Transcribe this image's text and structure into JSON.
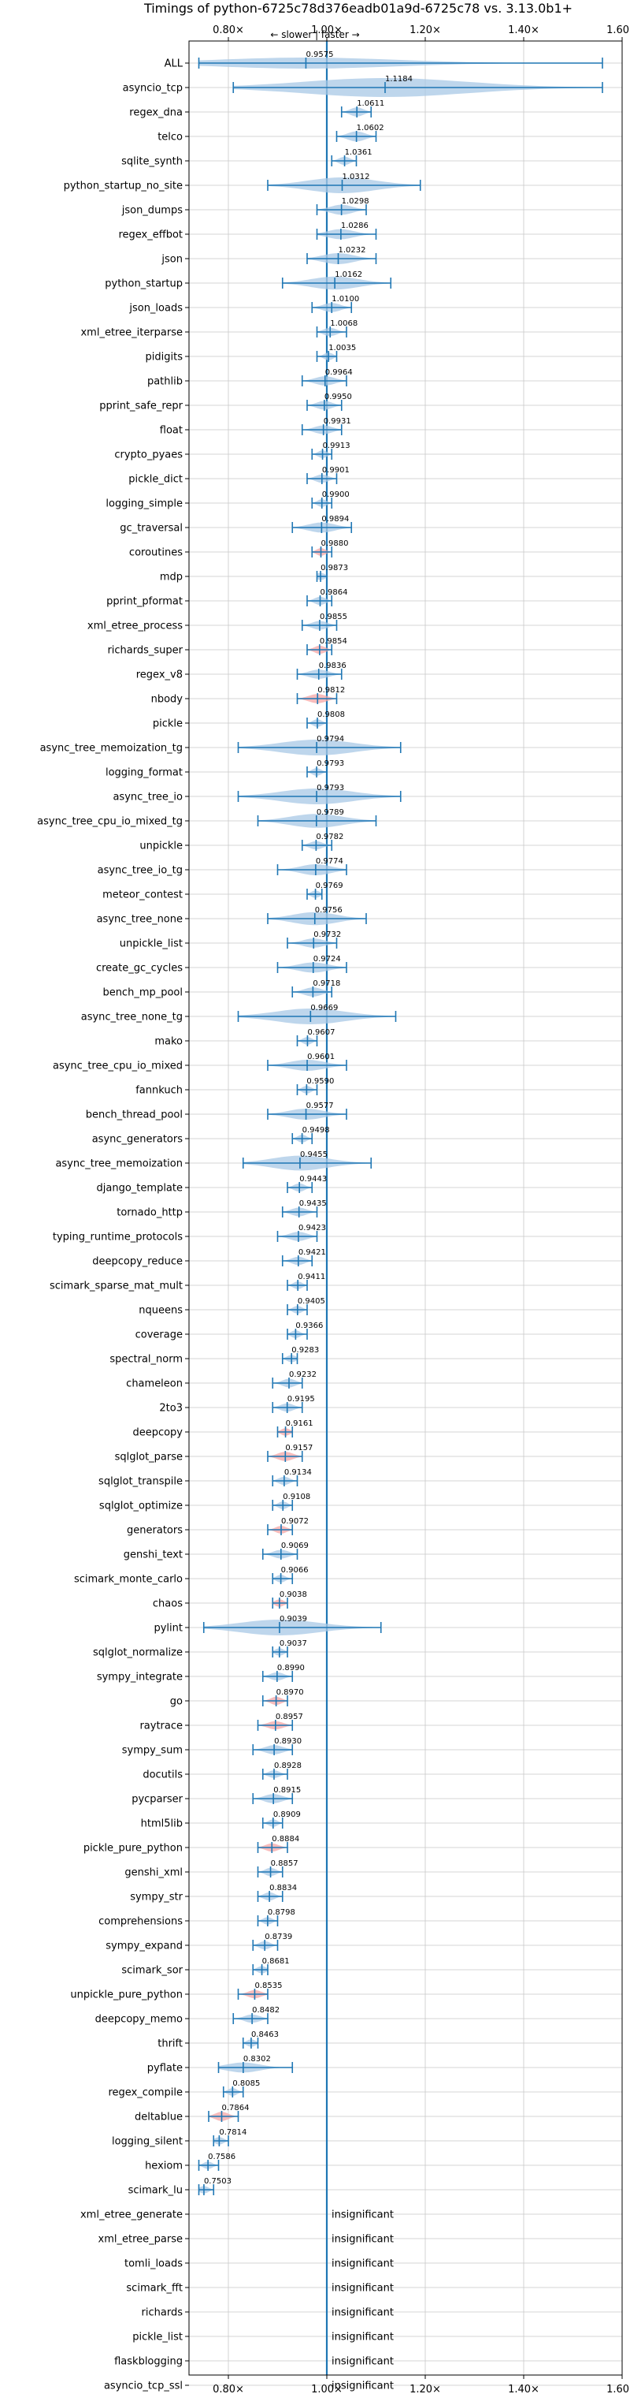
{
  "chart_data": {
    "type": "violin",
    "title": "Timings of python-6725c78d376eadb01a9d-6725c78 vs. 3.13.0b1+",
    "direction_label": "← slower | faster →",
    "xlim": [
      0.72,
      1.6
    ],
    "x_ticks": [
      0.8,
      1.0,
      1.2,
      1.4,
      1.6
    ],
    "x_tick_labels": [
      "0.80×",
      "1.00×",
      "1.20×",
      "1.40×",
      "1.60×"
    ],
    "reference_line": 1.0,
    "grid": true,
    "colors": {
      "violin": "#a8c8e6",
      "highlight": "#f4a6a6",
      "line": "#1f77b4"
    },
    "benchmarks": [
      {
        "name": "ALL",
        "value": 0.9575,
        "label": "0.9575",
        "lo": 0.74,
        "hi": 1.56,
        "spread": 0.05,
        "highlight": false
      },
      {
        "name": "asyncio_tcp",
        "value": 1.1184,
        "label": "1.1184",
        "lo": 0.81,
        "hi": 1.56,
        "spread": 0.3,
        "highlight": false
      },
      {
        "name": "regex_dna",
        "value": 1.0611,
        "label": "1.0611",
        "lo": 1.03,
        "hi": 1.09,
        "spread": 0.03,
        "highlight": false
      },
      {
        "name": "telco",
        "value": 1.0602,
        "label": "1.0602",
        "lo": 1.02,
        "hi": 1.1,
        "spread": 0.04,
        "highlight": false
      },
      {
        "name": "sqlite_synth",
        "value": 1.0361,
        "label": "1.0361",
        "lo": 1.01,
        "hi": 1.06,
        "spread": 0.02,
        "highlight": false
      },
      {
        "name": "python_startup_no_site",
        "value": 1.0312,
        "label": "1.0312",
        "lo": 0.88,
        "hi": 1.19,
        "spread": 0.1,
        "highlight": false
      },
      {
        "name": "json_dumps",
        "value": 1.0298,
        "label": "1.0298",
        "lo": 0.98,
        "hi": 1.08,
        "spread": 0.04,
        "highlight": false
      },
      {
        "name": "regex_effbot",
        "value": 1.0286,
        "label": "1.0286",
        "lo": 0.98,
        "hi": 1.1,
        "spread": 0.04,
        "highlight": false
      },
      {
        "name": "json",
        "value": 1.0232,
        "label": "1.0232",
        "lo": 0.96,
        "hi": 1.1,
        "spread": 0.05,
        "highlight": false
      },
      {
        "name": "python_startup",
        "value": 1.0162,
        "label": "1.0162",
        "lo": 0.91,
        "hi": 1.13,
        "spread": 0.07,
        "highlight": false
      },
      {
        "name": "json_loads",
        "value": 1.01,
        "label": "1.0100",
        "lo": 0.97,
        "hi": 1.05,
        "spread": 0.03,
        "highlight": false
      },
      {
        "name": "xml_etree_iterparse",
        "value": 1.0068,
        "label": "1.0068",
        "lo": 0.98,
        "hi": 1.04,
        "spread": 0.02,
        "highlight": false
      },
      {
        "name": "pidigits",
        "value": 1.0035,
        "label": "1.0035",
        "lo": 0.98,
        "hi": 1.02,
        "spread": 0.015,
        "highlight": false
      },
      {
        "name": "pathlib",
        "value": 0.9964,
        "label": "0.9964",
        "lo": 0.95,
        "hi": 1.04,
        "spread": 0.03,
        "highlight": false
      },
      {
        "name": "pprint_safe_repr",
        "value": 0.995,
        "label": "0.9950",
        "lo": 0.96,
        "hi": 1.03,
        "spread": 0.025,
        "highlight": false
      },
      {
        "name": "float",
        "value": 0.9931,
        "label": "0.9931",
        "lo": 0.95,
        "hi": 1.03,
        "spread": 0.025,
        "highlight": false
      },
      {
        "name": "crypto_pyaes",
        "value": 0.9913,
        "label": "0.9913",
        "lo": 0.97,
        "hi": 1.01,
        "spread": 0.015,
        "highlight": false
      },
      {
        "name": "pickle_dict",
        "value": 0.9901,
        "label": "0.9901",
        "lo": 0.96,
        "hi": 1.02,
        "spread": 0.02,
        "highlight": false
      },
      {
        "name": "logging_simple",
        "value": 0.99,
        "label": "0.9900",
        "lo": 0.97,
        "hi": 1.01,
        "spread": 0.015,
        "highlight": false
      },
      {
        "name": "gc_traversal",
        "value": 0.9894,
        "label": "0.9894",
        "lo": 0.93,
        "hi": 1.05,
        "spread": 0.04,
        "highlight": false
      },
      {
        "name": "coroutines",
        "value": 0.988,
        "label": "0.9880",
        "lo": 0.97,
        "hi": 1.01,
        "spread": 0.015,
        "highlight": true
      },
      {
        "name": "mdp",
        "value": 0.9873,
        "label": "0.9873",
        "lo": 0.98,
        "hi": 1.0,
        "spread": 0.01,
        "highlight": false
      },
      {
        "name": "pprint_pformat",
        "value": 0.9864,
        "label": "0.9864",
        "lo": 0.96,
        "hi": 1.01,
        "spread": 0.02,
        "highlight": false
      },
      {
        "name": "xml_etree_process",
        "value": 0.9855,
        "label": "0.9855",
        "lo": 0.95,
        "hi": 1.02,
        "spread": 0.025,
        "highlight": false
      },
      {
        "name": "richards_super",
        "value": 0.9854,
        "label": "0.9854",
        "lo": 0.96,
        "hi": 1.01,
        "spread": 0.02,
        "highlight": true
      },
      {
        "name": "regex_v8",
        "value": 0.9836,
        "label": "0.9836",
        "lo": 0.94,
        "hi": 1.03,
        "spread": 0.03,
        "highlight": false
      },
      {
        "name": "nbody",
        "value": 0.9812,
        "label": "0.9812",
        "lo": 0.94,
        "hi": 1.02,
        "spread": 0.03,
        "highlight": true
      },
      {
        "name": "pickle",
        "value": 0.9808,
        "label": "0.9808",
        "lo": 0.96,
        "hi": 1.0,
        "spread": 0.015,
        "highlight": false
      },
      {
        "name": "async_tree_memoization_tg",
        "value": 0.9794,
        "label": "0.9794",
        "lo": 0.82,
        "hi": 1.15,
        "spread": 0.1,
        "highlight": false
      },
      {
        "name": "logging_format",
        "value": 0.9793,
        "label": "0.9793",
        "lo": 0.96,
        "hi": 1.0,
        "spread": 0.015,
        "highlight": false
      },
      {
        "name": "async_tree_io",
        "value": 0.9793,
        "label": "0.9793",
        "lo": 0.82,
        "hi": 1.15,
        "spread": 0.1,
        "highlight": false
      },
      {
        "name": "async_tree_cpu_io_mixed_tg",
        "value": 0.9789,
        "label": "0.9789",
        "lo": 0.86,
        "hi": 1.1,
        "spread": 0.08,
        "highlight": false
      },
      {
        "name": "unpickle",
        "value": 0.9782,
        "label": "0.9782",
        "lo": 0.95,
        "hi": 1.01,
        "spread": 0.02,
        "highlight": false
      },
      {
        "name": "async_tree_io_tg",
        "value": 0.9774,
        "label": "0.9774",
        "lo": 0.9,
        "hi": 1.04,
        "spread": 0.05,
        "highlight": false
      },
      {
        "name": "meteor_contest",
        "value": 0.9769,
        "label": "0.9769",
        "lo": 0.96,
        "hi": 0.99,
        "spread": 0.01,
        "highlight": false
      },
      {
        "name": "async_tree_none",
        "value": 0.9756,
        "label": "0.9756",
        "lo": 0.88,
        "hi": 1.08,
        "spread": 0.07,
        "highlight": false
      },
      {
        "name": "unpickle_list",
        "value": 0.9732,
        "label": "0.9732",
        "lo": 0.92,
        "hi": 1.02,
        "spread": 0.03,
        "highlight": false
      },
      {
        "name": "create_gc_cycles",
        "value": 0.9724,
        "label": "0.9724",
        "lo": 0.9,
        "hi": 1.04,
        "spread": 0.04,
        "highlight": false
      },
      {
        "name": "bench_mp_pool",
        "value": 0.9718,
        "label": "0.9718",
        "lo": 0.93,
        "hi": 1.01,
        "spread": 0.03,
        "highlight": false
      },
      {
        "name": "async_tree_none_tg",
        "value": 0.9669,
        "label": "0.9669",
        "lo": 0.82,
        "hi": 1.14,
        "spread": 0.1,
        "highlight": false
      },
      {
        "name": "mako",
        "value": 0.9607,
        "label": "0.9607",
        "lo": 0.94,
        "hi": 0.98,
        "spread": 0.015,
        "highlight": false
      },
      {
        "name": "async_tree_cpu_io_mixed",
        "value": 0.9601,
        "label": "0.9601",
        "lo": 0.88,
        "hi": 1.04,
        "spread": 0.05,
        "highlight": false
      },
      {
        "name": "fannkuch",
        "value": 0.959,
        "label": "0.9590",
        "lo": 0.94,
        "hi": 0.98,
        "spread": 0.015,
        "highlight": false
      },
      {
        "name": "bench_thread_pool",
        "value": 0.9577,
        "label": "0.9577",
        "lo": 0.88,
        "hi": 1.04,
        "spread": 0.05,
        "highlight": false
      },
      {
        "name": "async_generators",
        "value": 0.9498,
        "label": "0.9498",
        "lo": 0.93,
        "hi": 0.97,
        "spread": 0.015,
        "highlight": false
      },
      {
        "name": "async_tree_memoization",
        "value": 0.9455,
        "label": "0.9455",
        "lo": 0.83,
        "hi": 1.09,
        "spread": 0.09,
        "highlight": false
      },
      {
        "name": "django_template",
        "value": 0.9443,
        "label": "0.9443",
        "lo": 0.92,
        "hi": 0.97,
        "spread": 0.02,
        "highlight": false
      },
      {
        "name": "tornado_http",
        "value": 0.9435,
        "label": "0.9435",
        "lo": 0.91,
        "hi": 0.98,
        "spread": 0.025,
        "highlight": false
      },
      {
        "name": "typing_runtime_protocols",
        "value": 0.9423,
        "label": "0.9423",
        "lo": 0.9,
        "hi": 0.98,
        "spread": 0.03,
        "highlight": false
      },
      {
        "name": "deepcopy_reduce",
        "value": 0.9421,
        "label": "0.9421",
        "lo": 0.91,
        "hi": 0.97,
        "spread": 0.02,
        "highlight": false
      },
      {
        "name": "scimark_sparse_mat_mult",
        "value": 0.9411,
        "label": "0.9411",
        "lo": 0.92,
        "hi": 0.96,
        "spread": 0.015,
        "highlight": false
      },
      {
        "name": "nqueens",
        "value": 0.9405,
        "label": "0.9405",
        "lo": 0.92,
        "hi": 0.96,
        "spread": 0.015,
        "highlight": false
      },
      {
        "name": "coverage",
        "value": 0.9366,
        "label": "0.9366",
        "lo": 0.92,
        "hi": 0.96,
        "spread": 0.015,
        "highlight": false
      },
      {
        "name": "spectral_norm",
        "value": 0.9283,
        "label": "0.9283",
        "lo": 0.91,
        "hi": 0.94,
        "spread": 0.01,
        "highlight": false
      },
      {
        "name": "chameleon",
        "value": 0.9232,
        "label": "0.9232",
        "lo": 0.89,
        "hi": 0.95,
        "spread": 0.025,
        "highlight": false
      },
      {
        "name": "2to3",
        "value": 0.9195,
        "label": "0.9195",
        "lo": 0.89,
        "hi": 0.95,
        "spread": 0.02,
        "highlight": false
      },
      {
        "name": "deepcopy",
        "value": 0.9161,
        "label": "0.9161",
        "lo": 0.9,
        "hi": 0.93,
        "spread": 0.012,
        "highlight": true
      },
      {
        "name": "sqlglot_parse",
        "value": 0.9157,
        "label": "0.9157",
        "lo": 0.88,
        "hi": 0.95,
        "spread": 0.03,
        "highlight": true
      },
      {
        "name": "sqlglot_transpile",
        "value": 0.9134,
        "label": "0.9134",
        "lo": 0.89,
        "hi": 0.94,
        "spread": 0.02,
        "highlight": false
      },
      {
        "name": "sqlglot_optimize",
        "value": 0.9108,
        "label": "0.9108",
        "lo": 0.89,
        "hi": 0.93,
        "spread": 0.015,
        "highlight": false
      },
      {
        "name": "generators",
        "value": 0.9072,
        "label": "0.9072",
        "lo": 0.88,
        "hi": 0.93,
        "spread": 0.015,
        "highlight": true
      },
      {
        "name": "genshi_text",
        "value": 0.9069,
        "label": "0.9069",
        "lo": 0.87,
        "hi": 0.94,
        "spread": 0.025,
        "highlight": false
      },
      {
        "name": "scimark_monte_carlo",
        "value": 0.9066,
        "label": "0.9066",
        "lo": 0.89,
        "hi": 0.93,
        "spread": 0.015,
        "highlight": false
      },
      {
        "name": "chaos",
        "value": 0.9038,
        "label": "0.9038",
        "lo": 0.89,
        "hi": 0.92,
        "spread": 0.012,
        "highlight": true
      },
      {
        "name": "pylint",
        "value": 0.9039,
        "label": "0.9039",
        "lo": 0.75,
        "hi": 1.11,
        "spread": 0.1,
        "highlight": false
      },
      {
        "name": "sqlglot_normalize",
        "value": 0.9037,
        "label": "0.9037",
        "lo": 0.89,
        "hi": 0.92,
        "spread": 0.012,
        "highlight": false
      },
      {
        "name": "sympy_integrate",
        "value": 0.899,
        "label": "0.8990",
        "lo": 0.87,
        "hi": 0.93,
        "spread": 0.02,
        "highlight": false
      },
      {
        "name": "go",
        "value": 0.897,
        "label": "0.8970",
        "lo": 0.87,
        "hi": 0.92,
        "spread": 0.02,
        "highlight": true
      },
      {
        "name": "raytrace",
        "value": 0.8957,
        "label": "0.8957",
        "lo": 0.86,
        "hi": 0.93,
        "spread": 0.02,
        "highlight": true
      },
      {
        "name": "sympy_sum",
        "value": 0.893,
        "label": "0.8930",
        "lo": 0.85,
        "hi": 0.93,
        "spread": 0.03,
        "highlight": false
      },
      {
        "name": "docutils",
        "value": 0.8928,
        "label": "0.8928",
        "lo": 0.87,
        "hi": 0.92,
        "spread": 0.015,
        "highlight": false
      },
      {
        "name": "pycparser",
        "value": 0.8915,
        "label": "0.8915",
        "lo": 0.85,
        "hi": 0.93,
        "spread": 0.03,
        "highlight": false
      },
      {
        "name": "html5lib",
        "value": 0.8909,
        "label": "0.8909",
        "lo": 0.87,
        "hi": 0.91,
        "spread": 0.012,
        "highlight": false
      },
      {
        "name": "pickle_pure_python",
        "value": 0.8884,
        "label": "0.8884",
        "lo": 0.86,
        "hi": 0.92,
        "spread": 0.02,
        "highlight": true
      },
      {
        "name": "genshi_xml",
        "value": 0.8857,
        "label": "0.8857",
        "lo": 0.86,
        "hi": 0.91,
        "spread": 0.02,
        "highlight": false
      },
      {
        "name": "sympy_str",
        "value": 0.8834,
        "label": "0.8834",
        "lo": 0.86,
        "hi": 0.91,
        "spread": 0.02,
        "highlight": false
      },
      {
        "name": "comprehensions",
        "value": 0.8798,
        "label": "0.8798",
        "lo": 0.86,
        "hi": 0.9,
        "spread": 0.012,
        "highlight": false
      },
      {
        "name": "sympy_expand",
        "value": 0.8739,
        "label": "0.8739",
        "lo": 0.85,
        "hi": 0.9,
        "spread": 0.02,
        "highlight": false
      },
      {
        "name": "scimark_sor",
        "value": 0.8681,
        "label": "0.8681",
        "lo": 0.85,
        "hi": 0.88,
        "spread": 0.01,
        "highlight": false
      },
      {
        "name": "unpickle_pure_python",
        "value": 0.8535,
        "label": "0.8535",
        "lo": 0.82,
        "hi": 0.88,
        "spread": 0.02,
        "highlight": true
      },
      {
        "name": "deepcopy_memo",
        "value": 0.8482,
        "label": "0.8482",
        "lo": 0.81,
        "hi": 0.88,
        "spread": 0.02,
        "highlight": false
      },
      {
        "name": "thrift",
        "value": 0.8463,
        "label": "0.8463",
        "lo": 0.83,
        "hi": 0.86,
        "spread": 0.012,
        "highlight": false
      },
      {
        "name": "pyflate",
        "value": 0.8302,
        "label": "0.8302",
        "lo": 0.78,
        "hi": 0.93,
        "spread": 0.04,
        "highlight": false
      },
      {
        "name": "regex_compile",
        "value": 0.8085,
        "label": "0.8085",
        "lo": 0.79,
        "hi": 0.83,
        "spread": 0.015,
        "highlight": false
      },
      {
        "name": "deltablue",
        "value": 0.7864,
        "label": "0.7864",
        "lo": 0.76,
        "hi": 0.82,
        "spread": 0.03,
        "highlight": true
      },
      {
        "name": "logging_silent",
        "value": 0.7814,
        "label": "0.7814",
        "lo": 0.77,
        "hi": 0.8,
        "spread": 0.012,
        "highlight": false
      },
      {
        "name": "hexiom",
        "value": 0.7586,
        "label": "0.7586",
        "lo": 0.74,
        "hi": 0.78,
        "spread": 0.012,
        "highlight": false
      },
      {
        "name": "scimark_lu",
        "value": 0.7503,
        "label": "0.7503",
        "lo": 0.74,
        "hi": 0.77,
        "spread": 0.012,
        "highlight": false
      }
    ],
    "insignificant": [
      "xml_etree_generate",
      "xml_etree_parse",
      "tomli_loads",
      "scimark_fft",
      "richards",
      "pickle_list",
      "flaskblogging",
      "asyncio_tcp_ssl"
    ],
    "insignificant_label": "insignificant"
  }
}
